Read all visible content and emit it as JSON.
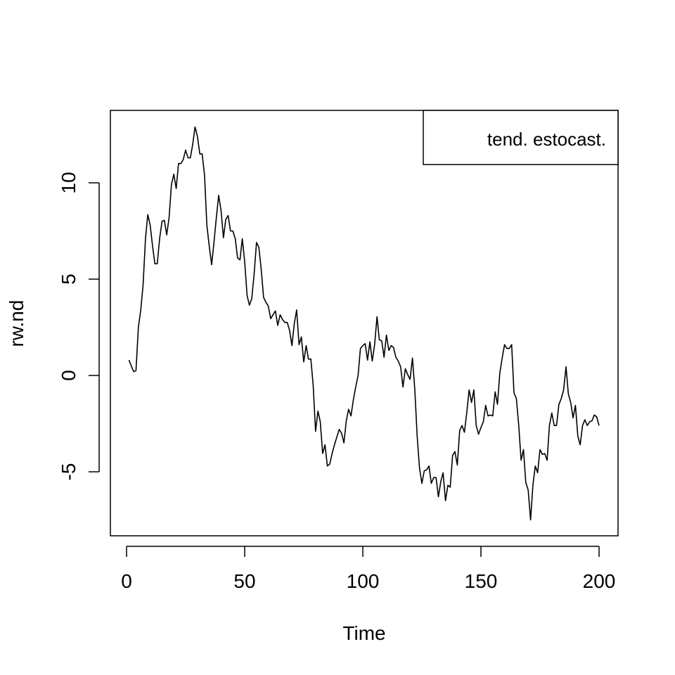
{
  "chart_data": {
    "type": "line",
    "title": "",
    "xlabel": "Time",
    "ylabel": "rw.nd",
    "xlim": [
      0,
      200
    ],
    "ylim": [
      -8,
      13
    ],
    "xticks": [
      0,
      50,
      100,
      150,
      200
    ],
    "yticks": [
      -5,
      0,
      5,
      10
    ],
    "grid": false,
    "legend": {
      "placement": "top-right",
      "entries": [
        "tend. estocast."
      ]
    },
    "line_color": "#000000",
    "series": [
      {
        "name": "tend. estocast.",
        "x_start": 1,
        "values": [
          0.8,
          0.5,
          0.2,
          0.25,
          2.5,
          3.4,
          4.7,
          7.1,
          8.35,
          7.8,
          6.7,
          5.8,
          5.8,
          7.1,
          8.0,
          8.05,
          7.3,
          8.2,
          9.9,
          10.45,
          9.7,
          11.0,
          11.0,
          11.2,
          11.7,
          11.3,
          11.3,
          12.0,
          12.9,
          12.4,
          11.5,
          11.5,
          10.4,
          7.8,
          6.7,
          5.75,
          6.9,
          8.2,
          9.35,
          8.55,
          7.15,
          8.1,
          8.3,
          7.5,
          7.5,
          7.1,
          6.1,
          6.0,
          7.1,
          5.9,
          4.15,
          3.65,
          4.0,
          5.25,
          6.9,
          6.65,
          5.5,
          4.05,
          3.8,
          3.6,
          2.95,
          3.15,
          3.35,
          2.6,
          3.15,
          2.9,
          2.75,
          2.75,
          2.35,
          1.55,
          2.7,
          3.4,
          1.6,
          2.0,
          0.7,
          1.55,
          0.85,
          0.85,
          -0.5,
          -2.9,
          -1.85,
          -2.4,
          -4.05,
          -3.6,
          -4.7,
          -4.6,
          -4.05,
          -3.6,
          -3.2,
          -2.8,
          -3.0,
          -3.5,
          -2.35,
          -1.75,
          -2.1,
          -1.25,
          -0.6,
          0.0,
          1.4,
          1.55,
          1.65,
          0.8,
          1.75,
          0.75,
          1.6,
          3.05,
          1.85,
          1.8,
          0.95,
          2.1,
          1.3,
          1.55,
          1.45,
          0.95,
          0.75,
          0.45,
          -0.6,
          0.35,
          0.05,
          -0.2,
          0.9,
          -0.7,
          -3.15,
          -4.8,
          -5.6,
          -4.95,
          -4.9,
          -4.7,
          -5.6,
          -5.3,
          -5.3,
          -6.3,
          -5.5,
          -5.05,
          -6.5,
          -5.7,
          -5.8,
          -4.15,
          -3.95,
          -4.65,
          -2.85,
          -2.6,
          -2.95,
          -1.95,
          -0.75,
          -1.4,
          -0.75,
          -2.6,
          -3.05,
          -2.7,
          -2.4,
          -1.55,
          -2.1,
          -2.05,
          -2.1,
          -0.85,
          -1.5,
          0.15,
          0.9,
          1.6,
          1.4,
          1.4,
          1.6,
          -0.9,
          -1.2,
          -2.6,
          -4.4,
          -3.85,
          -5.55,
          -5.95,
          -7.5,
          -5.7,
          -4.7,
          -5.05,
          -3.85,
          -4.1,
          -4.05,
          -4.4,
          -2.6,
          -1.95,
          -2.6,
          -2.6,
          -1.5,
          -1.2,
          -0.75,
          0.45,
          -0.95,
          -1.4,
          -2.2,
          -1.55,
          -3.15,
          -3.6,
          -2.6,
          -2.3,
          -2.6,
          -2.4,
          -2.35,
          -2.05,
          -2.15,
          -2.6
        ]
      }
    ]
  }
}
